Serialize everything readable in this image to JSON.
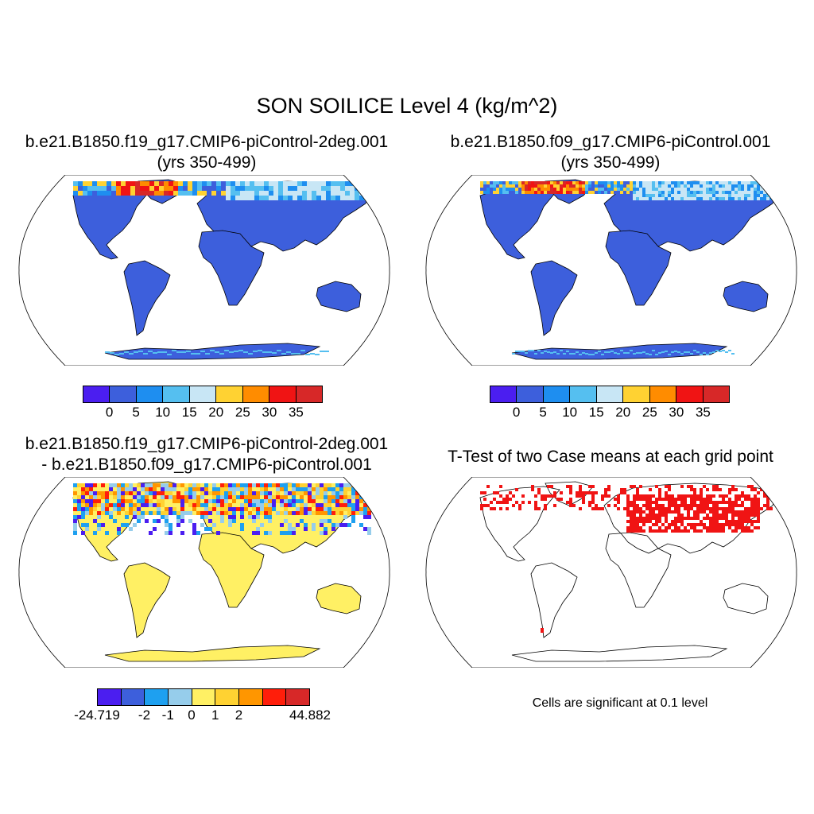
{
  "title": "SON SOILICE Level 4 (kg/m^2)",
  "panels": {
    "top_left": {
      "line1": "b.e21.B1850.f19_g17.CMIP6-piControl-2deg.001",
      "line2": "(yrs 350-499)"
    },
    "top_right": {
      "line1": "b.e21.B1850.f09_g17.CMIP6-piControl.001",
      "line2": "(yrs 350-499)"
    },
    "bottom_left": {
      "line1": "b.e21.B1850.f19_g17.CMIP6-piControl-2deg.001",
      "line2": "- b.e21.B1850.f09_g17.CMIP6-piControl.001"
    },
    "bottom_right": {
      "line1": "T-Test of two Case means at each grid point"
    }
  },
  "colorbar_abs": {
    "colors": [
      "#4b1ef0",
      "#3d5fdc",
      "#1e8ef0",
      "#55bff0",
      "#c8e6f5",
      "#ffd232",
      "#ff8c00",
      "#f01414",
      "#d72828"
    ],
    "labels": [
      "0",
      "5",
      "10",
      "15",
      "20",
      "25",
      "30",
      "35"
    ]
  },
  "colorbar_diff": {
    "colors": [
      "#4b1ef0",
      "#3d5fdc",
      "#1ea0f0",
      "#96cdeb",
      "#fff064",
      "#ffd232",
      "#ff9600",
      "#ff1e0a",
      "#d72828"
    ],
    "labels": [
      "-24.719",
      "-2",
      "-1",
      "0",
      "1",
      "2",
      "44.882"
    ]
  },
  "note": "Cells are significant at 0.1 level",
  "colors": {
    "land_base": "#3d5fdc",
    "land_diff": "#fff064",
    "ttest_sig": "#f01414",
    "coast": "#000000"
  }
}
